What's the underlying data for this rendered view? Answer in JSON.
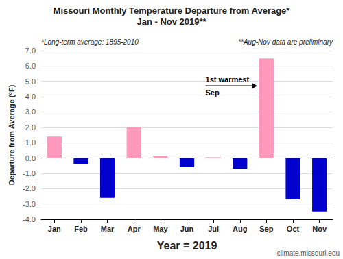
{
  "chart_data": {
    "type": "bar",
    "title": "Missouri Monthly Temperature Departure from Average*",
    "subtitle": "Jan - Nov 2019**",
    "xlabel": "Year = 2019",
    "ylabel": "Departure from Average (°F)",
    "categories": [
      "Jan",
      "Feb",
      "Mar",
      "Apr",
      "May",
      "Jun",
      "Jul",
      "Aug",
      "Sep",
      "Oct",
      "Nov"
    ],
    "values": [
      1.4,
      -0.4,
      -2.6,
      2.0,
      0.15,
      -0.6,
      0.05,
      -0.7,
      6.5,
      -2.7,
      -3.5
    ],
    "colors": [
      "#FF99BB",
      "#0000CC",
      "#0000CC",
      "#FF99BB",
      "#FF99BB",
      "#0000CC",
      "#FF99BB",
      "#0000CC",
      "#FF99BB",
      "#0000CC",
      "#0000CC"
    ],
    "ylim": [
      -4.0,
      7.0
    ],
    "yticks": [
      {
        "value": -4,
        "label": "-4.0"
      },
      {
        "value": -3,
        "label": "-3.0"
      },
      {
        "value": -2,
        "label": "-2.0"
      },
      {
        "value": -1,
        "label": "-1.0"
      },
      {
        "value": 0,
        "label": "0.0"
      },
      {
        "value": 1,
        "label": "1.0"
      },
      {
        "value": 2,
        "label": "2.0"
      },
      {
        "value": 3,
        "label": "3.0"
      },
      {
        "value": 4,
        "label": "4.0"
      },
      {
        "value": 5,
        "label": "5.0"
      },
      {
        "value": 6,
        "label": "6.0"
      },
      {
        "value": 7,
        "label": "7.0"
      }
    ],
    "grid": true,
    "annotations": [
      {
        "text": "1st warmest\nSep",
        "category": "Sep"
      }
    ],
    "notes": [
      "*Long-term average: 1895-2010",
      "**Aug-Nov data are preliminary"
    ],
    "source": "climate.missouri.edu"
  }
}
